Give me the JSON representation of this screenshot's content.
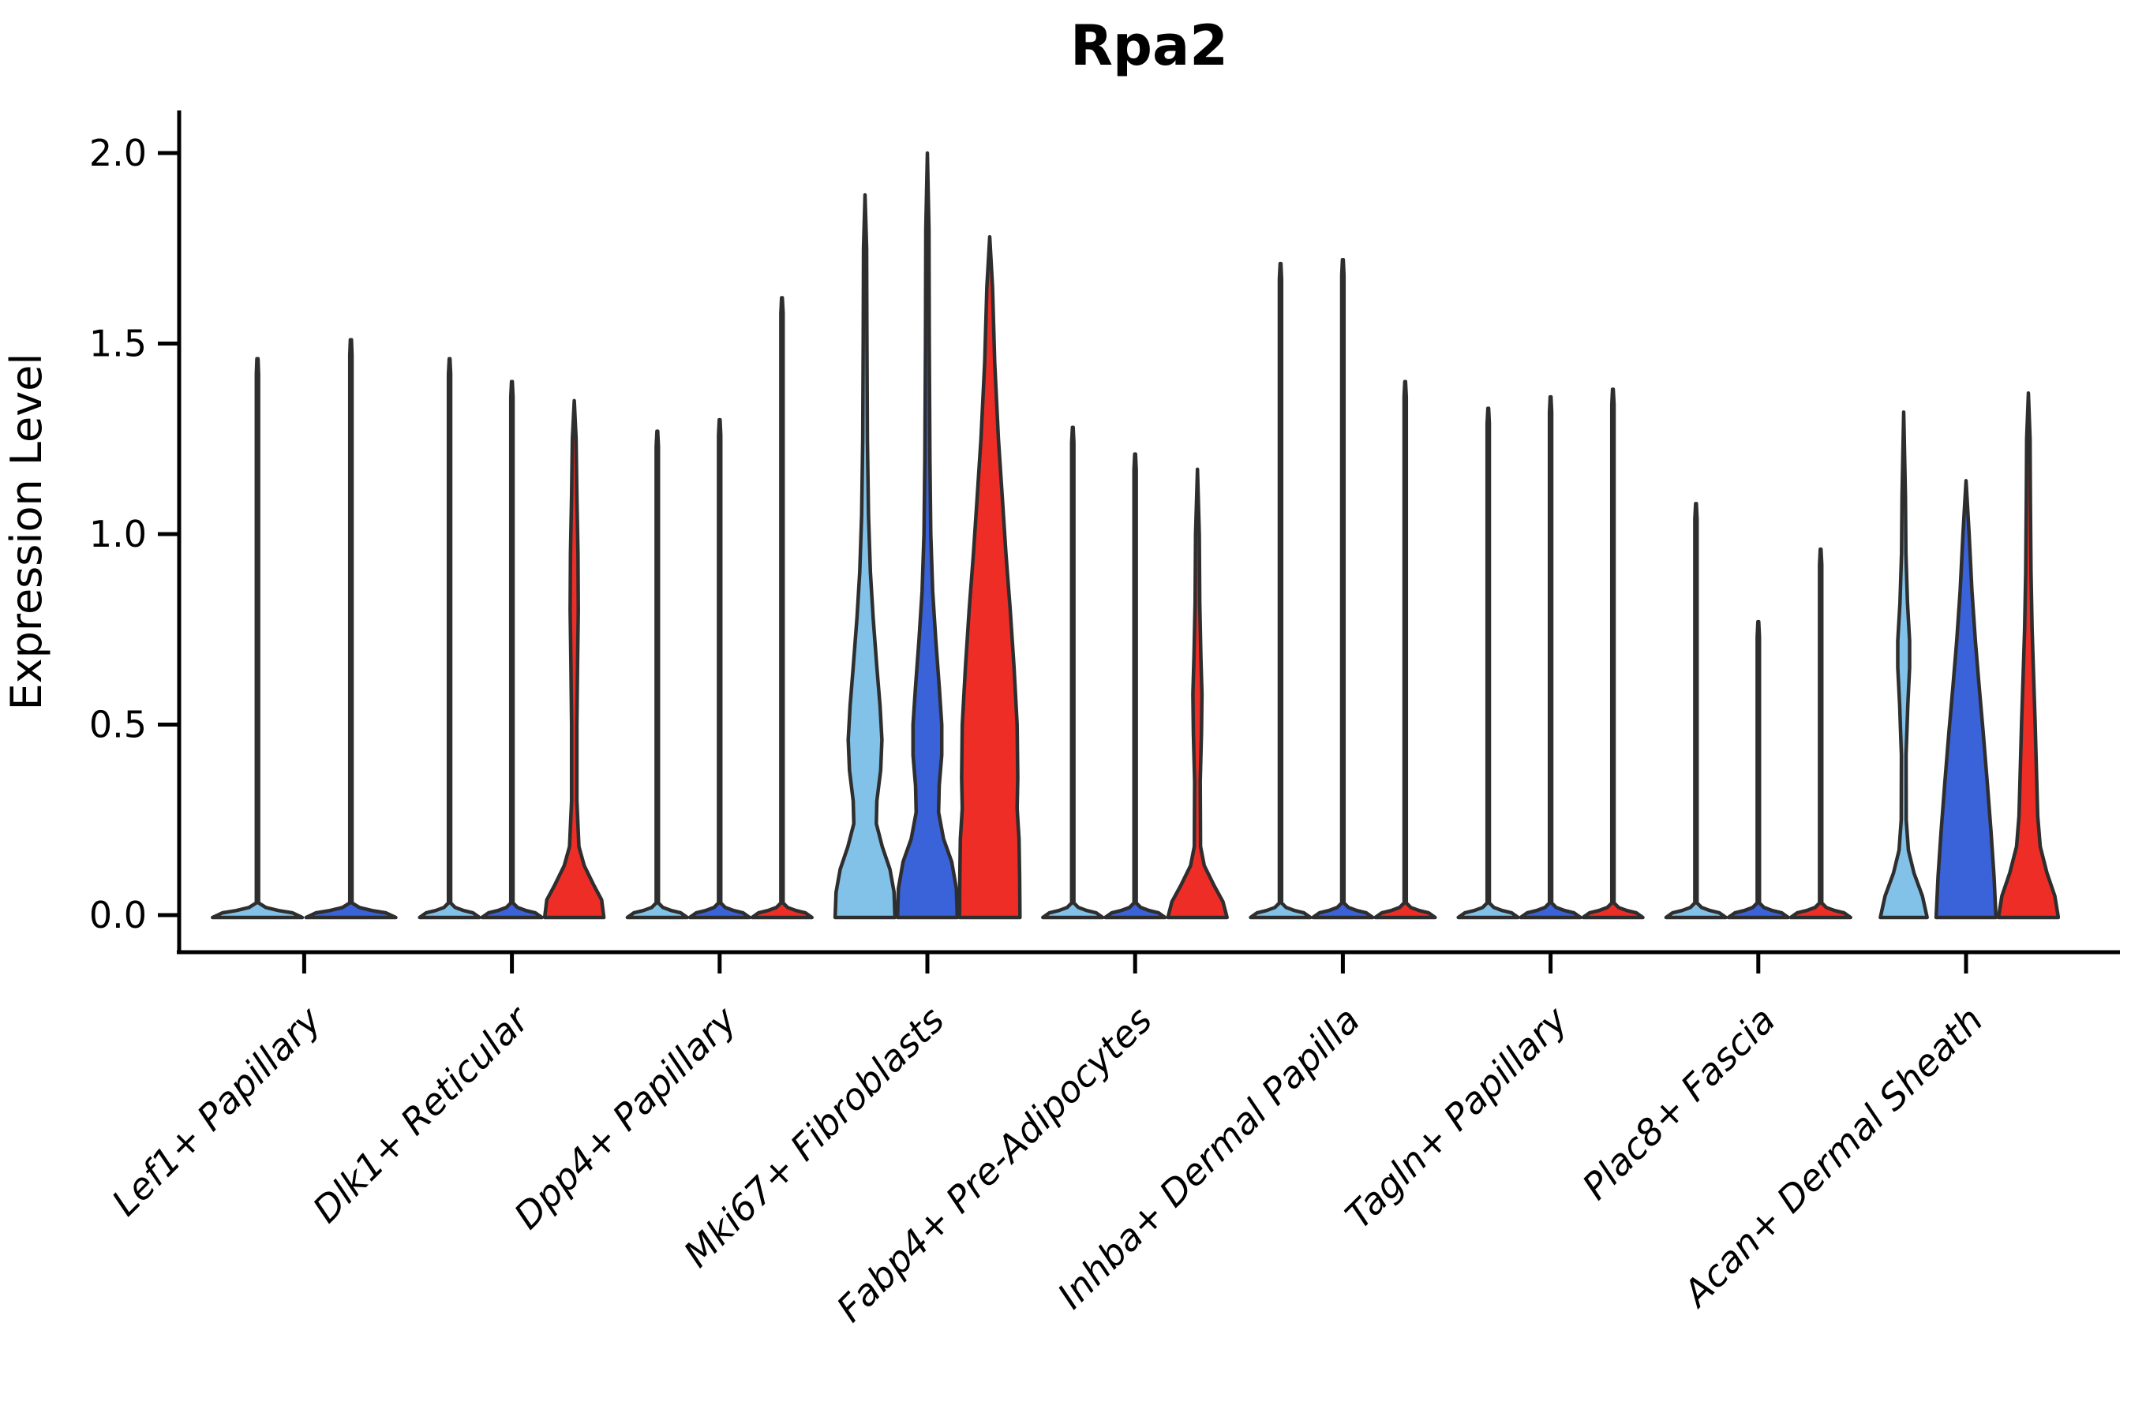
{
  "title": "Rpa2",
  "y_axis": {
    "label": "Expression Level",
    "ticks": [
      {
        "label": "2.0",
        "value": 2.0
      },
      {
        "label": "1.5",
        "value": 1.5
      },
      {
        "label": "1.0",
        "value": 1.0
      },
      {
        "label": "0.5",
        "value": 0.5
      },
      {
        "label": "0.0",
        "value": 0.0
      }
    ]
  },
  "palette": {
    "axis": "#000000",
    "edge": "#2e2e2e",
    "series_light_blue": "#82c2e8",
    "series_blue": "#3a62d9",
    "series_red": "#ee2d26"
  },
  "chart_data": {
    "type": "violin",
    "title": "Rpa2",
    "xlabel": "",
    "ylabel": "Expression Level",
    "ylim": [
      -0.1,
      2.11
    ],
    "yticks": [
      0.0,
      0.5,
      1.0,
      1.5,
      2.0
    ],
    "grid": false,
    "legend": "none",
    "series_colors": [
      "#82c2e8",
      "#3a62d9",
      "#ee2d26"
    ],
    "categories": [
      "Lef1+ Papillary",
      "Dlk1+ Reticular",
      "Dpp4+ Papillary",
      "Mki67+ Fibroblasts",
      "Fabp4+ Pre-Adipocytes",
      "Inhba+ Dermal Papilla",
      "Tagln+ Papillary",
      "Plac8+ Fascia",
      "Acan+ Dermal Sheath"
    ],
    "groups": [
      {
        "label": "Lef1+ Papillary",
        "violins": [
          {
            "color": 0,
            "offset": -0.225,
            "width": 0.45,
            "max": 1.46,
            "shape": "line"
          },
          {
            "color": 1,
            "offset": 0.225,
            "width": 0.45,
            "max": 1.51,
            "shape": "line"
          }
        ]
      },
      {
        "label": "Dlk1+ Reticular",
        "violins": [
          {
            "color": 0,
            "offset": -0.3,
            "width": 0.3,
            "max": 1.46,
            "shape": "line"
          },
          {
            "color": 1,
            "offset": 0.0,
            "width": 0.3,
            "max": 1.4,
            "shape": "line"
          },
          {
            "color": 2,
            "offset": 0.3,
            "width": 0.3,
            "max": 1.35,
            "shape": "profile",
            "profile": [
              [
                0,
                0.95
              ],
              [
                0.04,
                0.88
              ],
              [
                0.08,
                0.62
              ],
              [
                0.13,
                0.32
              ],
              [
                0.18,
                0.15
              ],
              [
                0.3,
                0.085
              ],
              [
                0.5,
                0.085
              ],
              [
                0.65,
                0.105
              ],
              [
                0.8,
                0.13
              ],
              [
                0.95,
                0.12
              ],
              [
                1.1,
                0.085
              ],
              [
                1.25,
                0.06
              ],
              [
                1.35,
                0
              ]
            ]
          }
        ]
      },
      {
        "label": "Dpp4+ Papillary",
        "violins": [
          {
            "color": 0,
            "offset": -0.3,
            "width": 0.3,
            "max": 1.27,
            "shape": "line"
          },
          {
            "color": 1,
            "offset": 0.0,
            "width": 0.3,
            "max": 1.3,
            "shape": "line"
          },
          {
            "color": 2,
            "offset": 0.3,
            "width": 0.3,
            "max": 1.62,
            "shape": "line"
          }
        ]
      },
      {
        "label": "Mki67+ Fibroblasts",
        "violins": [
          {
            "color": 0,
            "offset": -0.3,
            "width": 0.3,
            "max": 1.89,
            "shape": "profile",
            "profile": [
              [
                0,
                0.96
              ],
              [
                0.06,
                0.93
              ],
              [
                0.12,
                0.8
              ],
              [
                0.18,
                0.55
              ],
              [
                0.24,
                0.36
              ],
              [
                0.3,
                0.38
              ],
              [
                0.38,
                0.5
              ],
              [
                0.46,
                0.54
              ],
              [
                0.55,
                0.48
              ],
              [
                0.65,
                0.38
              ],
              [
                0.78,
                0.26
              ],
              [
                0.9,
                0.17
              ],
              [
                1.05,
                0.11
              ],
              [
                1.25,
                0.075
              ],
              [
                1.5,
                0.06
              ],
              [
                1.75,
                0.05
              ],
              [
                1.89,
                0
              ]
            ]
          },
          {
            "color": 1,
            "offset": 0.0,
            "width": 0.3,
            "max": 2.0,
            "shape": "profile",
            "profile": [
              [
                0,
                0.96
              ],
              [
                0.07,
                0.93
              ],
              [
                0.14,
                0.78
              ],
              [
                0.2,
                0.52
              ],
              [
                0.27,
                0.36
              ],
              [
                0.34,
                0.38
              ],
              [
                0.42,
                0.46
              ],
              [
                0.5,
                0.46
              ],
              [
                0.6,
                0.38
              ],
              [
                0.72,
                0.27
              ],
              [
                0.85,
                0.17
              ],
              [
                1.0,
                0.11
              ],
              [
                1.2,
                0.08
              ],
              [
                1.5,
                0.06
              ],
              [
                1.8,
                0.05
              ],
              [
                2.0,
                0
              ]
            ]
          },
          {
            "color": 2,
            "offset": 0.3,
            "width": 0.3,
            "max": 1.78,
            "shape": "profile",
            "profile": [
              [
                0,
                0.97
              ],
              [
                0.1,
                0.96
              ],
              [
                0.2,
                0.94
              ],
              [
                0.28,
                0.88
              ],
              [
                0.36,
                0.9
              ],
              [
                0.5,
                0.88
              ],
              [
                0.65,
                0.78
              ],
              [
                0.8,
                0.66
              ],
              [
                0.95,
                0.52
              ],
              [
                1.1,
                0.4
              ],
              [
                1.25,
                0.28
              ],
              [
                1.45,
                0.16
              ],
              [
                1.65,
                0.09
              ],
              [
                1.78,
                0
              ]
            ]
          }
        ]
      },
      {
        "label": "Fabp4+ Pre-Adipocytes",
        "violins": [
          {
            "color": 0,
            "offset": -0.3,
            "width": 0.3,
            "max": 1.28,
            "shape": "line"
          },
          {
            "color": 1,
            "offset": 0.0,
            "width": 0.3,
            "max": 1.21,
            "shape": "line"
          },
          {
            "color": 2,
            "offset": 0.3,
            "width": 0.3,
            "max": 1.17,
            "shape": "profile",
            "profile": [
              [
                0,
                0.95
              ],
              [
                0.035,
                0.82
              ],
              [
                0.08,
                0.52
              ],
              [
                0.13,
                0.22
              ],
              [
                0.18,
                0.1
              ],
              [
                0.35,
                0.09
              ],
              [
                0.48,
                0.13
              ],
              [
                0.58,
                0.145
              ],
              [
                0.68,
                0.11
              ],
              [
                0.82,
                0.075
              ],
              [
                1.0,
                0.06
              ],
              [
                1.17,
                0
              ]
            ]
          }
        ]
      },
      {
        "label": "Inhba+ Dermal Papilla",
        "violins": [
          {
            "color": 0,
            "offset": -0.3,
            "width": 0.3,
            "max": 1.71,
            "shape": "line"
          },
          {
            "color": 1,
            "offset": 0.0,
            "width": 0.3,
            "max": 1.72,
            "shape": "line"
          },
          {
            "color": 2,
            "offset": 0.3,
            "width": 0.3,
            "max": 1.4,
            "shape": "line"
          }
        ]
      },
      {
        "label": "Tagln+ Papillary",
        "violins": [
          {
            "color": 0,
            "offset": -0.3,
            "width": 0.3,
            "max": 1.33,
            "shape": "line"
          },
          {
            "color": 1,
            "offset": 0.0,
            "width": 0.3,
            "max": 1.36,
            "shape": "line"
          },
          {
            "color": 2,
            "offset": 0.3,
            "width": 0.3,
            "max": 1.38,
            "shape": "line"
          }
        ]
      },
      {
        "label": "Plac8+ Fascia",
        "violins": [
          {
            "color": 0,
            "offset": -0.3,
            "width": 0.3,
            "max": 1.08,
            "shape": "line"
          },
          {
            "color": 1,
            "offset": 0.0,
            "width": 0.3,
            "max": 0.77,
            "shape": "line"
          },
          {
            "color": 2,
            "offset": 0.3,
            "width": 0.3,
            "max": 0.96,
            "shape": "line"
          }
        ]
      },
      {
        "label": "Acan+ Dermal Sheath",
        "violins": [
          {
            "color": 0,
            "offset": -0.3,
            "width": 0.3,
            "max": 1.32,
            "shape": "profile",
            "profile": [
              [
                0,
                0.75
              ],
              [
                0.05,
                0.6
              ],
              [
                0.11,
                0.33
              ],
              [
                0.17,
                0.15
              ],
              [
                0.25,
                0.08
              ],
              [
                0.42,
                0.075
              ],
              [
                0.55,
                0.13
              ],
              [
                0.65,
                0.19
              ],
              [
                0.72,
                0.19
              ],
              [
                0.82,
                0.12
              ],
              [
                0.95,
                0.07
              ],
              [
                1.1,
                0.055
              ],
              [
                1.32,
                0
              ]
            ]
          },
          {
            "color": 1,
            "offset": 0.0,
            "width": 0.3,
            "max": 1.14,
            "shape": "profile",
            "profile": [
              [
                0,
                0.96
              ],
              [
                0.1,
                0.9
              ],
              [
                0.22,
                0.8
              ],
              [
                0.35,
                0.68
              ],
              [
                0.48,
                0.55
              ],
              [
                0.6,
                0.42
              ],
              [
                0.72,
                0.3
              ],
              [
                0.85,
                0.19
              ],
              [
                1.0,
                0.1
              ],
              [
                1.14,
                0
              ]
            ]
          },
          {
            "color": 2,
            "offset": 0.3,
            "width": 0.3,
            "max": 1.37,
            "shape": "profile",
            "profile": [
              [
                0,
                0.96
              ],
              [
                0.05,
                0.85
              ],
              [
                0.11,
                0.6
              ],
              [
                0.18,
                0.38
              ],
              [
                0.26,
                0.3
              ],
              [
                0.38,
                0.26
              ],
              [
                0.5,
                0.22
              ],
              [
                0.62,
                0.17
              ],
              [
                0.75,
                0.12
              ],
              [
                0.9,
                0.085
              ],
              [
                1.1,
                0.065
              ],
              [
                1.25,
                0.055
              ],
              [
                1.37,
                0
              ]
            ]
          }
        ]
      }
    ]
  }
}
